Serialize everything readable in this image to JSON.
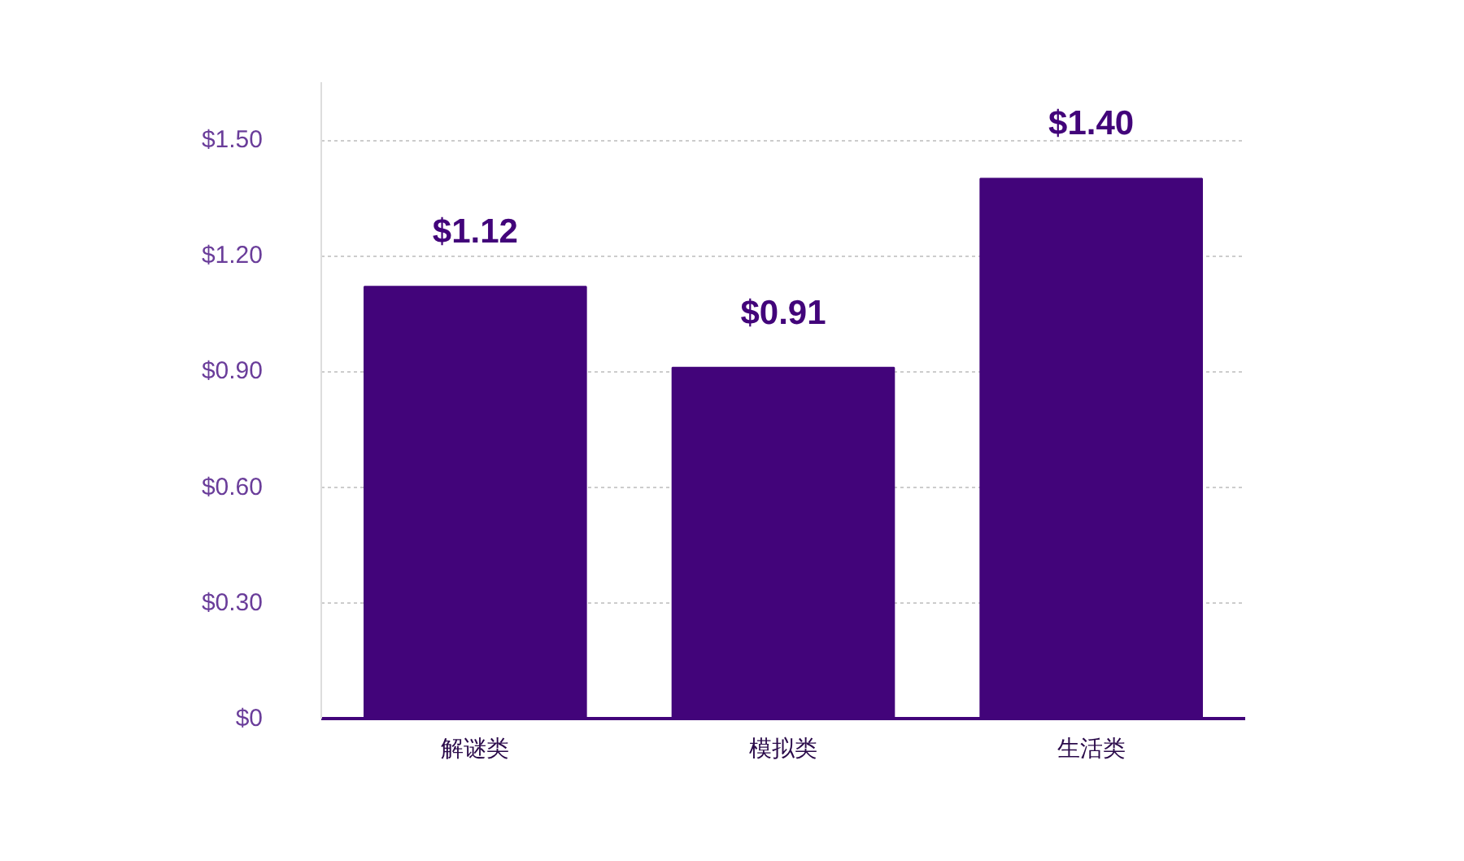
{
  "chart_data": {
    "type": "bar",
    "categories": [
      "解谜类",
      "模拟类",
      "生活类"
    ],
    "values": [
      1.12,
      0.91,
      1.4
    ],
    "color": "#42047a",
    "value_labels": [
      "$1.12",
      "$0.91",
      "$1.40"
    ],
    "ylim": [
      0,
      1.65
    ],
    "yticks": [
      {
        "value": 0,
        "label": "$0"
      },
      {
        "value": 0.3,
        "label": "$0.30"
      },
      {
        "value": 0.6,
        "label": "$0.60"
      },
      {
        "value": 0.9,
        "label": "$0.90"
      },
      {
        "value": 1.2,
        "label": "$1.20"
      },
      {
        "value": 1.5,
        "label": "$1.50"
      }
    ],
    "grid": "y"
  }
}
